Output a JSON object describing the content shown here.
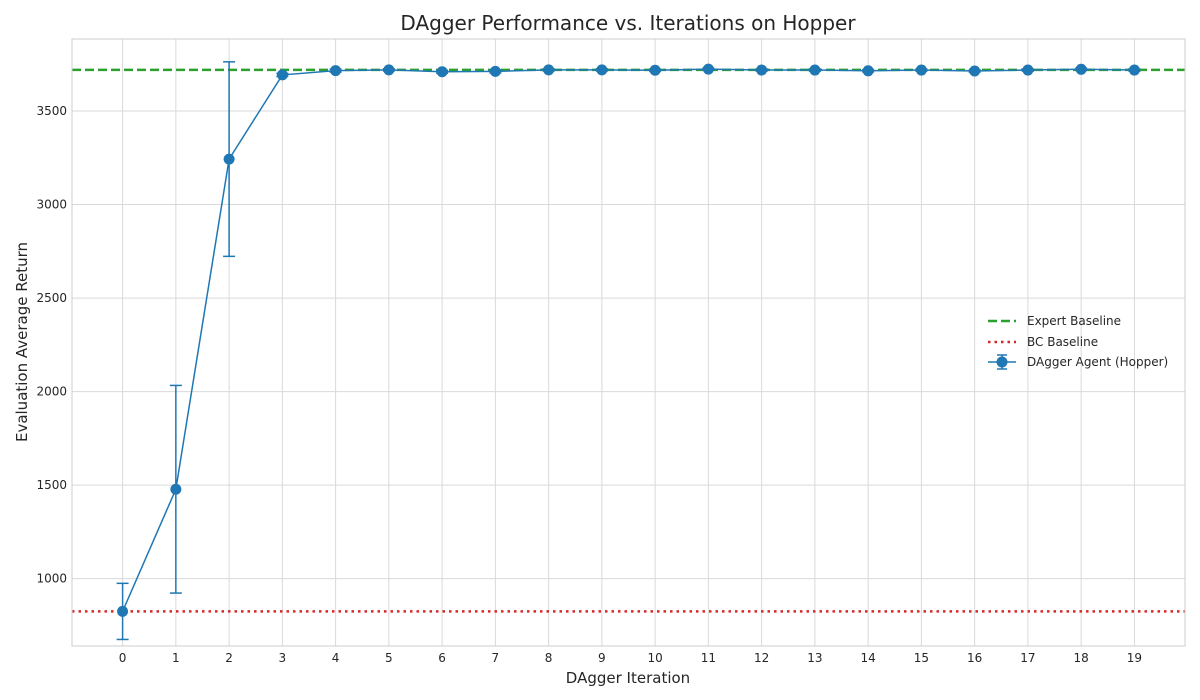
{
  "chart_data": {
    "type": "line",
    "title": "DAgger Performance vs. Iterations on Hopper",
    "xlabel": "DAgger Iteration",
    "ylabel": "Evaluation Average Return",
    "x": [
      0,
      1,
      2,
      3,
      4,
      5,
      6,
      7,
      8,
      9,
      10,
      11,
      12,
      13,
      14,
      15,
      16,
      17,
      18,
      19
    ],
    "xlim": [
      -0.95,
      19.95
    ],
    "ylim": [
      640,
      3885
    ],
    "yticks": [
      1000,
      1500,
      2000,
      2500,
      3000,
      3500
    ],
    "grid": true,
    "legend_position": "center-right",
    "series": [
      {
        "name": "DAgger Agent (Hopper)",
        "color": "#1f77b4",
        "marker": "circle",
        "values": [
          825,
          1478,
          3243,
          3693,
          3716,
          3720,
          3710,
          3712,
          3720,
          3720,
          3718,
          3724,
          3719,
          3719,
          3715,
          3719,
          3714,
          3719,
          3723,
          3719
        ],
        "error": [
          150,
          555,
          520,
          8,
          8,
          6,
          8,
          8,
          6,
          6,
          6,
          6,
          6,
          6,
          6,
          6,
          6,
          6,
          6,
          6
        ]
      }
    ],
    "baselines": [
      {
        "name": "Expert Baseline",
        "value": 3720,
        "color": "#2ca02c",
        "style": "dashed"
      },
      {
        "name": "BC Baseline",
        "value": 825,
        "color": "#d62728",
        "style": "dotted"
      }
    ]
  }
}
